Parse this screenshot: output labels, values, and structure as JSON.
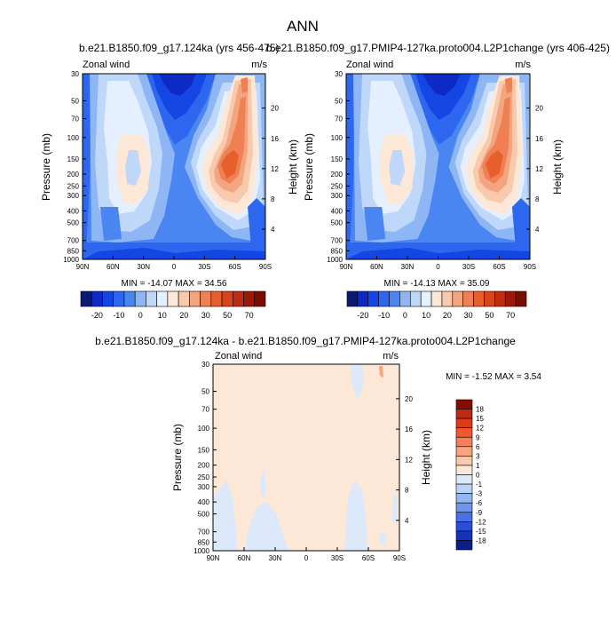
{
  "page": {
    "title": "ANN"
  },
  "colors": {
    "levels17": [
      "#0c1a73",
      "#0d2bc4",
      "#1446e4",
      "#2e67ef",
      "#4a86f2",
      "#8fb6f4",
      "#bfd7f8",
      "#e4efff",
      "#fde8d8",
      "#f8c9ad",
      "#f3a57f",
      "#ef8054",
      "#e85f2e",
      "#d8451a",
      "#c02c10",
      "#9e1808",
      "#7a0c03"
    ]
  },
  "chart_data": [
    {
      "type": "heatmap",
      "panel": "left",
      "title": "b.e21.B1850.f09_g17.124ka (yrs 456-475)",
      "left_label": "Zonal wind",
      "right_label": "m/s",
      "ylabel": "Pressure (mb)",
      "y2label": "Height (km)",
      "x_ticks": [
        "90N",
        "60N",
        "30N",
        "0",
        "30S",
        "60S",
        "90S"
      ],
      "y_ticks": [
        "30",
        "50",
        "70",
        "100",
        "150",
        "200",
        "250",
        "300",
        "400",
        "500",
        "700",
        "850",
        "1000"
      ],
      "y2_ticks": [
        "20",
        "16",
        "12",
        "8",
        "4"
      ],
      "stats": "MIN = -14.07  MAX =  34.56",
      "colorbar_labels": [
        "-20",
        "-10",
        "0",
        "10",
        "20",
        "30",
        "50",
        "70"
      ]
    },
    {
      "type": "heatmap",
      "panel": "right",
      "title": "b.e21.B1850.f09_g17.PMIP4-127ka.proto004.L2P1change (yrs 406-425)",
      "left_label": "Zonal wind",
      "right_label": "m/s",
      "ylabel": "Pressure (mb)",
      "y2label": "Height (km)",
      "x_ticks": [
        "90N",
        "60N",
        "30N",
        "0",
        "30S",
        "60S",
        "90S"
      ],
      "y_ticks": [
        "30",
        "50",
        "70",
        "100",
        "150",
        "200",
        "250",
        "300",
        "400",
        "500",
        "700",
        "850",
        "1000"
      ],
      "y2_ticks": [
        "20",
        "16",
        "12",
        "8",
        "4"
      ],
      "stats": "MIN = -14.13  MAX =  35.09",
      "colorbar_labels": [
        "-20",
        "-10",
        "0",
        "10",
        "20",
        "30",
        "50",
        "70"
      ]
    },
    {
      "type": "heatmap",
      "panel": "difference",
      "title": "b.e21.B1850.f09_g17.124ka - b.e21.B1850.f09_g17.PMIP4-127ka.proto004.L2P1change",
      "left_label": "Zonal wind",
      "right_label": "m/s",
      "ylabel": "Pressure (mb)",
      "y2label": "Height (km)",
      "x_ticks": [
        "90N",
        "60N",
        "30N",
        "0",
        "30S",
        "60S",
        "90S"
      ],
      "y_ticks": [
        "30",
        "50",
        "70",
        "100",
        "150",
        "200",
        "250",
        "300",
        "400",
        "500",
        "700",
        "850",
        "1000"
      ],
      "y2_ticks": [
        "20",
        "16",
        "12",
        "8",
        "4"
      ],
      "stats": "MIN =  -1.52  MAX =   3.54",
      "colorbar_labels": [
        "18",
        "15",
        "12",
        "9",
        "6",
        "3",
        "1",
        "0",
        "-1",
        "-3",
        "-6",
        "-9",
        "-12",
        "-15",
        "-18"
      ],
      "colorbar_colors": [
        "#8a0c00",
        "#c02810",
        "#df3a18",
        "#f2562c",
        "#f67f55",
        "#f9a47e",
        "#fbc9ad",
        "#fde7d6",
        "#dbe9fb",
        "#bcd3f6",
        "#96b6f1",
        "#6f95ec",
        "#4a72e6",
        "#2a4ed8",
        "#1432b8",
        "#0c1f86"
      ]
    }
  ]
}
